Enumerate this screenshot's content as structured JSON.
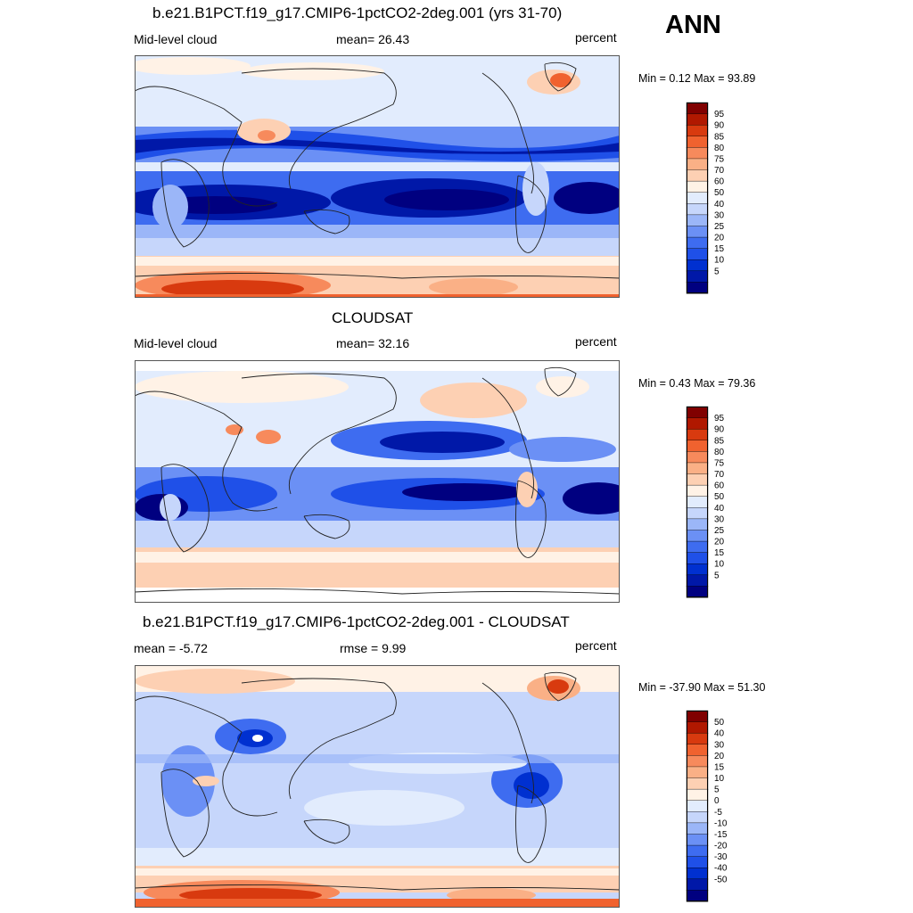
{
  "season": "ANN",
  "panels": [
    {
      "title": "b.e21.B1PCT.f19_g17.CMIP6-1pctCO2-2deg.001 (yrs 31-70)",
      "left_label": "Mid-level cloud",
      "mid_label": "mean=  26.43",
      "right_label": "percent",
      "minmax": "Min =   0.12 Max =  93.89",
      "colorbar_labels": [
        "95",
        "90",
        "85",
        "80",
        "75",
        "70",
        "60",
        "50",
        "40",
        "30",
        "25",
        "20",
        "15",
        "10",
        "5"
      ]
    },
    {
      "title": "CLOUDSAT",
      "left_label": "Mid-level cloud",
      "mid_label": "mean=  32.16",
      "right_label": "percent",
      "minmax": "Min =   0.43 Max =  79.36",
      "colorbar_labels": [
        "95",
        "90",
        "85",
        "80",
        "75",
        "70",
        "60",
        "50",
        "40",
        "30",
        "25",
        "20",
        "15",
        "10",
        "5"
      ]
    },
    {
      "title": "b.e21.B1PCT.f19_g17.CMIP6-1pctCO2-2deg.001 - CLOUDSAT",
      "left_label": "mean =  -5.72",
      "mid_label": "rmse =   9.99",
      "right_label": "percent",
      "minmax": "Min = -37.90 Max =  51.30",
      "colorbar_labels": [
        "50",
        "40",
        "30",
        "20",
        "15",
        "10",
        "5",
        "0",
        "-5",
        "-10",
        "-15",
        "-20",
        "-30",
        "-40",
        "-50"
      ]
    }
  ],
  "colors": {
    "scale": [
      "#000080",
      "#0018a8",
      "#0030d0",
      "#1f50e8",
      "#3e6cf0",
      "#6b90f5",
      "#9bb6f8",
      "#c6d6fb",
      "#e2ecfd",
      "#fff2e6",
      "#fdd0b3",
      "#fab086",
      "#f78a5c",
      "#f0622f",
      "#d83a0f",
      "#b01800",
      "#800000"
    ]
  }
}
